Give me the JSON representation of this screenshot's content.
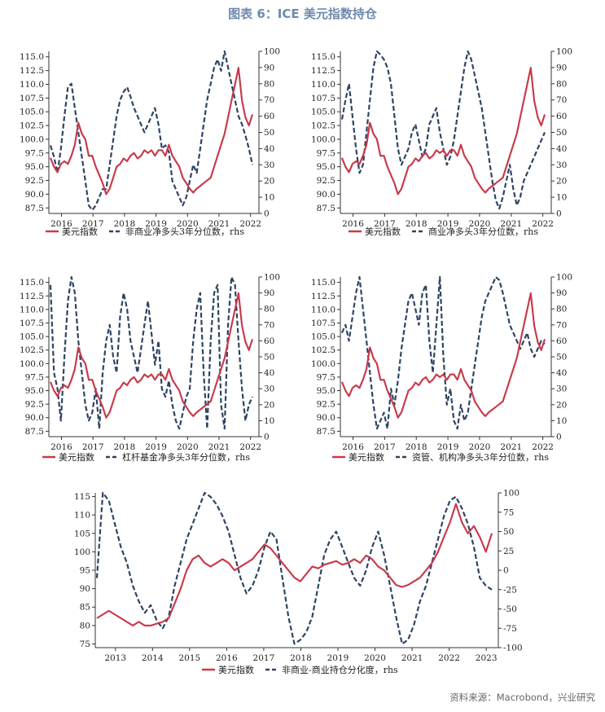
{
  "title": "图表 6：ICE 美元指数持仓",
  "source": "资料来源：Macrobond，兴业研究",
  "colors": {
    "usd": "#c93a4b",
    "pos": "#2f4463"
  },
  "chart_data": [
    {
      "type": "line",
      "xticks": [
        "2016",
        "2017",
        "2018",
        "2019",
        "2020",
        "2021",
        "2022"
      ],
      "yticks_left": [
        "115.0",
        "112.5",
        "110.0",
        "107.5",
        "105.0",
        "102.5",
        "100.0",
        "97.5",
        "95.0",
        "92.5",
        "90.0",
        "87.5"
      ],
      "yticks_right": [
        "100",
        "90",
        "80",
        "70",
        "60",
        "50",
        "40",
        "30",
        "20",
        "10",
        "0"
      ],
      "ylim_left": [
        86.5,
        116.0
      ],
      "ylim_right": [
        0,
        100
      ],
      "series": [
        {
          "name": "美元指数",
          "axis": "left",
          "values": [
            96.6,
            95,
            94,
            95.5,
            96,
            95.5,
            97,
            99,
            103,
            101,
            100,
            97,
            97,
            95,
            93.5,
            92,
            90,
            91,
            93,
            95,
            95.5,
            96.5,
            96,
            97,
            97.5,
            96.5,
            97,
            98,
            97.5,
            98,
            97,
            98,
            98,
            97,
            99,
            97,
            96,
            95,
            93,
            92,
            91,
            90.3,
            91,
            91.5,
            92,
            92.5,
            93,
            95,
            97,
            99,
            101,
            104,
            107,
            110,
            113,
            107,
            104,
            102.5,
            104.5
          ]
        },
        {
          "name": "非商业净多头3年分位数，rhs",
          "axis": "right",
          "values": [
            42,
            35,
            25,
            40,
            60,
            78,
            80,
            65,
            50,
            35,
            20,
            5,
            2,
            5,
            10,
            15,
            15,
            30,
            45,
            60,
            70,
            75,
            78,
            72,
            65,
            60,
            55,
            50,
            55,
            60,
            65,
            55,
            40,
            42,
            38,
            20,
            15,
            10,
            5,
            10,
            20,
            30,
            25,
            40,
            55,
            70,
            80,
            90,
            95,
            88,
            100,
            90,
            80,
            70,
            60,
            55,
            48,
            40,
            30
          ]
        }
      ],
      "legend": [
        "美元指数",
        "非商业净多头3年分位数，rhs"
      ]
    },
    {
      "type": "line",
      "xticks": [
        "2016",
        "2017",
        "2018",
        "2019",
        "2020",
        "2021",
        "2022"
      ],
      "yticks_left": [
        "115.0",
        "112.5",
        "110.0",
        "107.5",
        "105.0",
        "102.5",
        "100.0",
        "97.5",
        "95.0",
        "92.5",
        "90.0",
        "87.5"
      ],
      "yticks_right": [
        "100",
        "90",
        "80",
        "70",
        "60",
        "50",
        "40",
        "30",
        "20",
        "10",
        "0"
      ],
      "ylim_left": [
        86.5,
        116.0
      ],
      "ylim_right": [
        0,
        100
      ],
      "series": [
        {
          "name": "美元指数",
          "axis": "left",
          "values": [
            96.6,
            95,
            94,
            95.5,
            96,
            95.5,
            97,
            99,
            103,
            101,
            100,
            97,
            97,
            95,
            93.5,
            92,
            90,
            91,
            93,
            95,
            95.5,
            96.5,
            96,
            97,
            97.5,
            96.5,
            97,
            98,
            97.5,
            98,
            97,
            98,
            98,
            97,
            99,
            97,
            96,
            95,
            93,
            92,
            91,
            90.3,
            91,
            91.5,
            92,
            92.5,
            93,
            95,
            97,
            99,
            101,
            104,
            107,
            110,
            113,
            107,
            104,
            102.5,
            104.5
          ]
        },
        {
          "name": "商业净多头3年分位数，rhs",
          "axis": "right",
          "values": [
            58,
            70,
            80,
            60,
            40,
            25,
            30,
            50,
            70,
            90,
            100,
            98,
            95,
            90,
            80,
            60,
            40,
            30,
            35,
            40,
            50,
            55,
            45,
            35,
            40,
            55,
            60,
            65,
            50,
            40,
            30,
            35,
            45,
            60,
            75,
            90,
            100,
            95,
            85,
            75,
            65,
            50,
            35,
            20,
            8,
            3,
            10,
            20,
            30,
            15,
            5,
            10,
            20,
            25,
            30,
            35,
            40,
            45,
            50
          ]
        }
      ],
      "legend": [
        "美元指数",
        "商业净多头3年分位数，rhs"
      ]
    },
    {
      "type": "line",
      "xticks": [
        "2016",
        "2017",
        "2018",
        "2019",
        "2020",
        "2021",
        "2022"
      ],
      "yticks_left": [
        "115.0",
        "112.5",
        "110.0",
        "107.5",
        "105.0",
        "102.5",
        "100.0",
        "97.5",
        "95.0",
        "92.5",
        "90.0",
        "87.5"
      ],
      "yticks_right": [
        "100",
        "90",
        "80",
        "70",
        "60",
        "50",
        "40",
        "30",
        "20",
        "10",
        "0"
      ],
      "ylim_left": [
        86.5,
        116.0
      ],
      "ylim_right": [
        0,
        100
      ],
      "series": [
        {
          "name": "美元指数",
          "axis": "left",
          "values": [
            96.6,
            95,
            94,
            95.5,
            96,
            95.5,
            97,
            99,
            103,
            101,
            100,
            97,
            97,
            95,
            93.5,
            92,
            90,
            91,
            93,
            95,
            95.5,
            96.5,
            96,
            97,
            97.5,
            96.5,
            97,
            98,
            97.5,
            98,
            97,
            98,
            98,
            97,
            99,
            97,
            96,
            95,
            93,
            92,
            91,
            90.3,
            91,
            91.5,
            92,
            92.5,
            93,
            95,
            97,
            99,
            101,
            104,
            107,
            110,
            113,
            107,
            104,
            102.5,
            104.5
          ]
        },
        {
          "name": "杠杆基金净多头3年分位数，rhs",
          "axis": "right",
          "values": [
            95,
            40,
            30,
            10,
            50,
            85,
            100,
            90,
            60,
            40,
            20,
            10,
            15,
            30,
            5,
            40,
            60,
            70,
            50,
            40,
            75,
            90,
            80,
            60,
            50,
            40,
            55,
            70,
            85,
            65,
            45,
            60,
            30,
            25,
            35,
            20,
            10,
            5,
            15,
            25,
            30,
            60,
            80,
            90,
            40,
            5,
            60,
            90,
            95,
            20,
            5,
            70,
            100,
            95,
            60,
            30,
            10,
            20,
            25
          ]
        }
      ],
      "legend": [
        "美元指数",
        "杠杆基金净多头3年分位数，rhs"
      ]
    },
    {
      "type": "line",
      "xticks": [
        "2016",
        "2017",
        "2018",
        "2019",
        "2020",
        "2021",
        "2022"
      ],
      "yticks_left": [
        "115.0",
        "112.5",
        "110.0",
        "107.5",
        "105.0",
        "102.5",
        "100.0",
        "97.5",
        "95.0",
        "92.5",
        "90.0",
        "87.5"
      ],
      "yticks_right": [
        "100",
        "90",
        "80",
        "70",
        "60",
        "50",
        "40",
        "30",
        "20",
        "10",
        "0"
      ],
      "ylim_left": [
        86.5,
        116.0
      ],
      "ylim_right": [
        0,
        100
      ],
      "series": [
        {
          "name": "美元指数",
          "axis": "left",
          "values": [
            96.6,
            95,
            94,
            95.5,
            96,
            95.5,
            97,
            99,
            103,
            101,
            100,
            97,
            97,
            95,
            93.5,
            92,
            90,
            91,
            93,
            95,
            95.5,
            96.5,
            96,
            97,
            97.5,
            96.5,
            97,
            98,
            97.5,
            98,
            97,
            98,
            98,
            97,
            99,
            97,
            96,
            95,
            93,
            92,
            91,
            90.3,
            91,
            91.5,
            92,
            92.5,
            93,
            95,
            97,
            99,
            101,
            104,
            107,
            110,
            113,
            107,
            104,
            102.5,
            104.5
          ]
        },
        {
          "name": "资管、机构净多头3年分位数，rhs",
          "axis": "right",
          "values": [
            65,
            70,
            60,
            75,
            90,
            100,
            80,
            60,
            40,
            20,
            5,
            10,
            15,
            5,
            30,
            20,
            35,
            55,
            70,
            85,
            90,
            80,
            70,
            90,
            95,
            60,
            40,
            70,
            100,
            50,
            20,
            30,
            10,
            5,
            20,
            10,
            15,
            30,
            45,
            60,
            75,
            85,
            90,
            95,
            100,
            98,
            90,
            80,
            70,
            65,
            60,
            55,
            60,
            65,
            55,
            50,
            55,
            60,
            58
          ]
        }
      ],
      "legend": [
        "美元指数",
        "资管、机构净多头3年分位数，rhs"
      ]
    },
    {
      "type": "line",
      "xticks": [
        "2013",
        "2014",
        "2015",
        "2016",
        "2017",
        "2018",
        "2019",
        "2020",
        "2021",
        "2022",
        "2023"
      ],
      "yticks_left": [
        "115",
        "110",
        "105",
        "100",
        "95",
        "90",
        "85",
        "80",
        "75"
      ],
      "yticks_right": [
        "100",
        "75",
        "50",
        "25",
        "0",
        "-25",
        "-50",
        "-75",
        "-100"
      ],
      "ylim_left": [
        74,
        116
      ],
      "ylim_right": [
        -100,
        100
      ],
      "series": [
        {
          "name": "美元指数",
          "axis": "left",
          "values": [
            82,
            83,
            84,
            83,
            82,
            81,
            80,
            81,
            80,
            80,
            80.5,
            81,
            82,
            86,
            90,
            95,
            98,
            99,
            97,
            96,
            97,
            98,
            97,
            95,
            96,
            97,
            98,
            100,
            102,
            101,
            99,
            97,
            95,
            93,
            92,
            94,
            96,
            95.5,
            96.5,
            97,
            97.5,
            96.5,
            97,
            98,
            97,
            99,
            98,
            96,
            95,
            93,
            91,
            90.5,
            91,
            92,
            93,
            95,
            97,
            100,
            104,
            108,
            113,
            108,
            105,
            107,
            104,
            100,
            105
          ]
        },
        {
          "name": "非商业-商业持仓分化度，rhs",
          "axis": "right",
          "values": [
            -10,
            100,
            90,
            60,
            30,
            10,
            -20,
            -40,
            -55,
            -45,
            -65,
            -75,
            -60,
            -20,
            10,
            40,
            60,
            80,
            100,
            95,
            85,
            70,
            50,
            20,
            -10,
            -30,
            -20,
            0,
            30,
            50,
            40,
            -10,
            -60,
            -95,
            -90,
            -80,
            -60,
            -20,
            20,
            40,
            50,
            30,
            10,
            -10,
            -20,
            0,
            30,
            50,
            20,
            -20,
            -60,
            -95,
            -90,
            -70,
            -40,
            -20,
            10,
            40,
            70,
            90,
            95,
            80,
            60,
            30,
            -10,
            -20,
            -25
          ]
        }
      ],
      "legend": [
        "美元指数",
        "非商业-商业持仓分化度，rhs"
      ]
    }
  ]
}
